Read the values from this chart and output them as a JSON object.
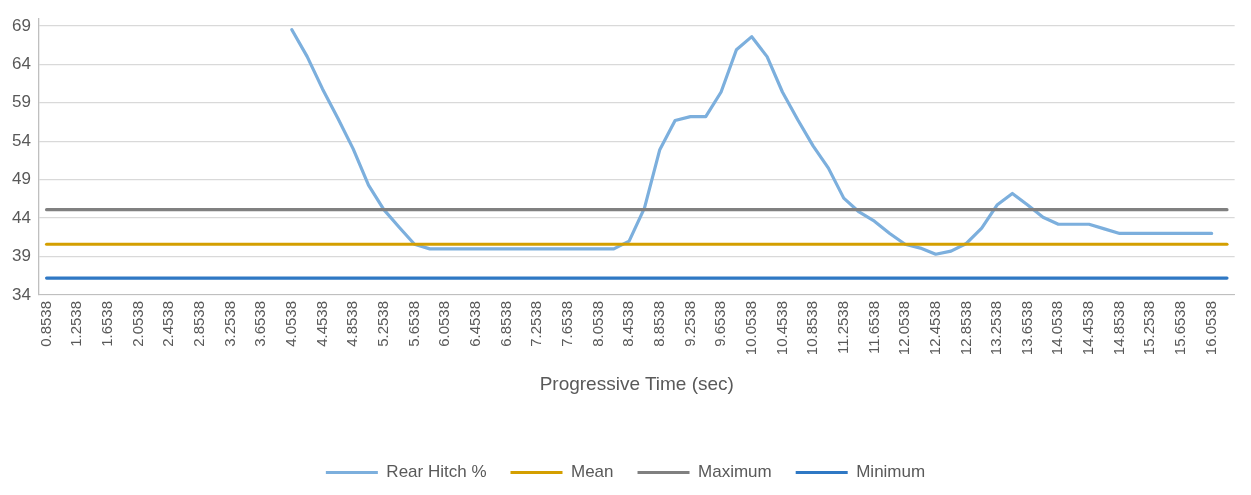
{
  "chart_data": {
    "type": "line",
    "xlabel": "Progressive Time (sec)",
    "categories": [
      "0.8538",
      null,
      "1.2538",
      null,
      "1.6538",
      null,
      "2.0538",
      null,
      "2.4538",
      null,
      "2.8538",
      null,
      "3.2538",
      null,
      "3.6538",
      null,
      "4.0538",
      null,
      "4.4538",
      null,
      "4.8538",
      null,
      "5.2538",
      null,
      "5.6538",
      null,
      "6.0538",
      null,
      "6.4538",
      null,
      "6.8538",
      null,
      "7.2538",
      null,
      "7.6538",
      null,
      "8.0538",
      null,
      "8.4538",
      null,
      "8.8538",
      null,
      "9.2538",
      null,
      "9.6538",
      null,
      "10.0538",
      null,
      "10.4538",
      null,
      "10.8538",
      null,
      "11.2538",
      null,
      "11.6538",
      null,
      "12.0538",
      null,
      "12.4538",
      null,
      "12.8538",
      null,
      "13.2538",
      null,
      "13.6538",
      null,
      "14.0538",
      null,
      "14.4538",
      null,
      "14.8538",
      null,
      "15.2538",
      null,
      "15.6538",
      null,
      "16.0538",
      null
    ],
    "series": [
      {
        "name": "Rear Hitch %",
        "color": "#7cafdd",
        "values": [
          null,
          null,
          null,
          null,
          null,
          null,
          null,
          null,
          null,
          null,
          null,
          null,
          null,
          null,
          null,
          null,
          68.5,
          65.0,
          60.8,
          57.0,
          53.0,
          48.3,
          45.1,
          42.8,
          40.6,
          40.0,
          40.0,
          40.0,
          40.0,
          40.0,
          40.0,
          40.0,
          40.0,
          40.0,
          40.0,
          40.0,
          40.0,
          40.0,
          41.0,
          45.3,
          52.9,
          56.7,
          57.2,
          57.2,
          60.4,
          65.9,
          67.6,
          65.0,
          60.4,
          56.8,
          53.4,
          50.5,
          46.6,
          44.8,
          43.6,
          42.0,
          40.6,
          40.1,
          39.3,
          39.7,
          40.7,
          42.7,
          45.7,
          47.2,
          45.7,
          44.1,
          43.2,
          43.2,
          43.2,
          42.6,
          42.0,
          42.0,
          42.0,
          42.0,
          42.0,
          42.0,
          42.0,
          null
        ]
      },
      {
        "name": "Mean",
        "color": "#d49f00",
        "values": [
          40.6,
          40.6,
          40.6,
          40.6,
          40.6,
          40.6,
          40.6,
          40.6,
          40.6,
          40.6,
          40.6,
          40.6,
          40.6,
          40.6,
          40.6,
          40.6,
          40.6,
          40.6,
          40.6,
          40.6,
          40.6,
          40.6,
          40.6,
          40.6,
          40.6,
          40.6,
          40.6,
          40.6,
          40.6,
          40.6,
          40.6,
          40.6,
          40.6,
          40.6,
          40.6,
          40.6,
          40.6,
          40.6,
          40.6,
          40.6,
          40.6,
          40.6,
          40.6,
          40.6,
          40.6,
          40.6,
          40.6,
          40.6,
          40.6,
          40.6,
          40.6,
          40.6,
          40.6,
          40.6,
          40.6,
          40.6,
          40.6,
          40.6,
          40.6,
          40.6,
          40.6,
          40.6,
          40.6,
          40.6,
          40.6,
          40.6,
          40.6,
          40.6,
          40.6,
          40.6,
          40.6,
          40.6,
          40.6,
          40.6,
          40.6,
          40.6,
          40.6,
          40.6
        ]
      },
      {
        "name": "Maximum",
        "color": "#808080",
        "values": [
          45.1,
          45.1,
          45.1,
          45.1,
          45.1,
          45.1,
          45.1,
          45.1,
          45.1,
          45.1,
          45.1,
          45.1,
          45.1,
          45.1,
          45.1,
          45.1,
          45.1,
          45.1,
          45.1,
          45.1,
          45.1,
          45.1,
          45.1,
          45.1,
          45.1,
          45.1,
          45.1,
          45.1,
          45.1,
          45.1,
          45.1,
          45.1,
          45.1,
          45.1,
          45.1,
          45.1,
          45.1,
          45.1,
          45.1,
          45.1,
          45.1,
          45.1,
          45.1,
          45.1,
          45.1,
          45.1,
          45.1,
          45.1,
          45.1,
          45.1,
          45.1,
          45.1,
          45.1,
          45.1,
          45.1,
          45.1,
          45.1,
          45.1,
          45.1,
          45.1,
          45.1,
          45.1,
          45.1,
          45.1,
          45.1,
          45.1,
          45.1,
          45.1,
          45.1,
          45.1,
          45.1,
          45.1,
          45.1,
          45.1,
          45.1,
          45.1,
          45.1,
          45.1
        ]
      },
      {
        "name": "Minimum",
        "color": "#2f78c4",
        "values": [
          36.2,
          36.2,
          36.2,
          36.2,
          36.2,
          36.2,
          36.2,
          36.2,
          36.2,
          36.2,
          36.2,
          36.2,
          36.2,
          36.2,
          36.2,
          36.2,
          36.2,
          36.2,
          36.2,
          36.2,
          36.2,
          36.2,
          36.2,
          36.2,
          36.2,
          36.2,
          36.2,
          36.2,
          36.2,
          36.2,
          36.2,
          36.2,
          36.2,
          36.2,
          36.2,
          36.2,
          36.2,
          36.2,
          36.2,
          36.2,
          36.2,
          36.2,
          36.2,
          36.2,
          36.2,
          36.2,
          36.2,
          36.2,
          36.2,
          36.2,
          36.2,
          36.2,
          36.2,
          36.2,
          36.2,
          36.2,
          36.2,
          36.2,
          36.2,
          36.2,
          36.2,
          36.2,
          36.2,
          36.2,
          36.2,
          36.2,
          36.2,
          36.2,
          36.2,
          36.2,
          36.2,
          36.2,
          36.2,
          36.2,
          36.2,
          36.2,
          36.2,
          36.2
        ]
      }
    ],
    "ylim": [
      34,
      70
    ],
    "yticks": [
      34,
      39,
      44,
      49,
      54,
      59,
      64,
      69
    ],
    "grid": "y",
    "legend": "bottom",
    "marker": "none",
    "line_style": "solid"
  }
}
